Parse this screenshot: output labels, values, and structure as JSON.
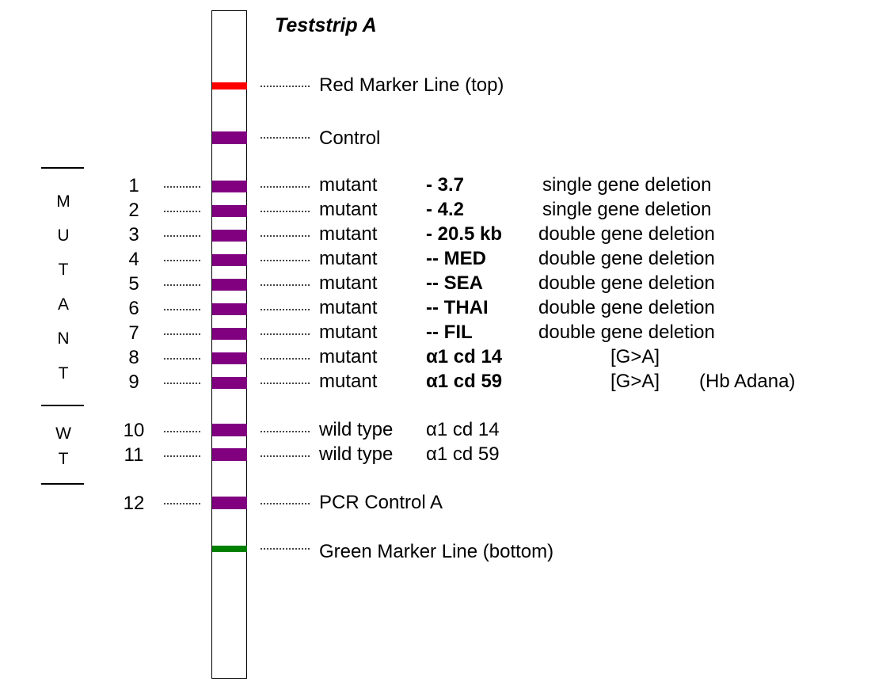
{
  "title": "Teststrip A",
  "colors": {
    "red_marker": "#ff0000",
    "control_band": "#800080",
    "green_marker": "#008000"
  },
  "markers": {
    "top": "Red Marker Line (top)",
    "control": "Control",
    "pcr_control": "PCR Control A",
    "bottom": "Green Marker Line (bottom)"
  },
  "group_labels": {
    "mutant": [
      "M",
      "U",
      "T",
      "A",
      "N",
      "T"
    ],
    "wild_type": [
      "W",
      "T"
    ]
  },
  "rows": [
    {
      "number": "1",
      "type": "mutant",
      "variant": "- 3.7",
      "desc": "single gene deletion",
      "note": "",
      "extra": ""
    },
    {
      "number": "2",
      "type": "mutant",
      "variant": "- 4.2",
      "desc": "single gene deletion",
      "note": "",
      "extra": ""
    },
    {
      "number": "3",
      "type": "mutant",
      "variant": "- 20.5 kb",
      "desc": "double gene deletion",
      "note": "",
      "extra": ""
    },
    {
      "number": "4",
      "type": "mutant",
      "variant": "-- MED",
      "desc": "double gene deletion",
      "note": "",
      "extra": ""
    },
    {
      "number": "5",
      "type": "mutant",
      "variant": "-- SEA",
      "desc": "double gene deletion",
      "note": "",
      "extra": ""
    },
    {
      "number": "6",
      "type": "mutant",
      "variant": "-- THAI",
      "desc": "double gene deletion",
      "note": "",
      "extra": ""
    },
    {
      "number": "7",
      "type": "mutant",
      "variant": "-- FIL",
      "desc": "double gene deletion",
      "note": "",
      "extra": ""
    },
    {
      "number": "8",
      "type": "mutant",
      "variant": "α1 cd 14",
      "desc": "",
      "note": "[G>A]",
      "extra": ""
    },
    {
      "number": "9",
      "type": "mutant",
      "variant": "α1 cd 59",
      "desc": "",
      "note": "[G>A]",
      "extra": "(Hb Adana)"
    },
    {
      "number": "10",
      "type": "wild type",
      "variant": "α1 cd 14",
      "desc": "",
      "note": "",
      "extra": ""
    },
    {
      "number": "11",
      "type": "wild type",
      "variant": "α1 cd 59",
      "desc": "",
      "note": "",
      "extra": ""
    }
  ],
  "pcr_number": "12"
}
